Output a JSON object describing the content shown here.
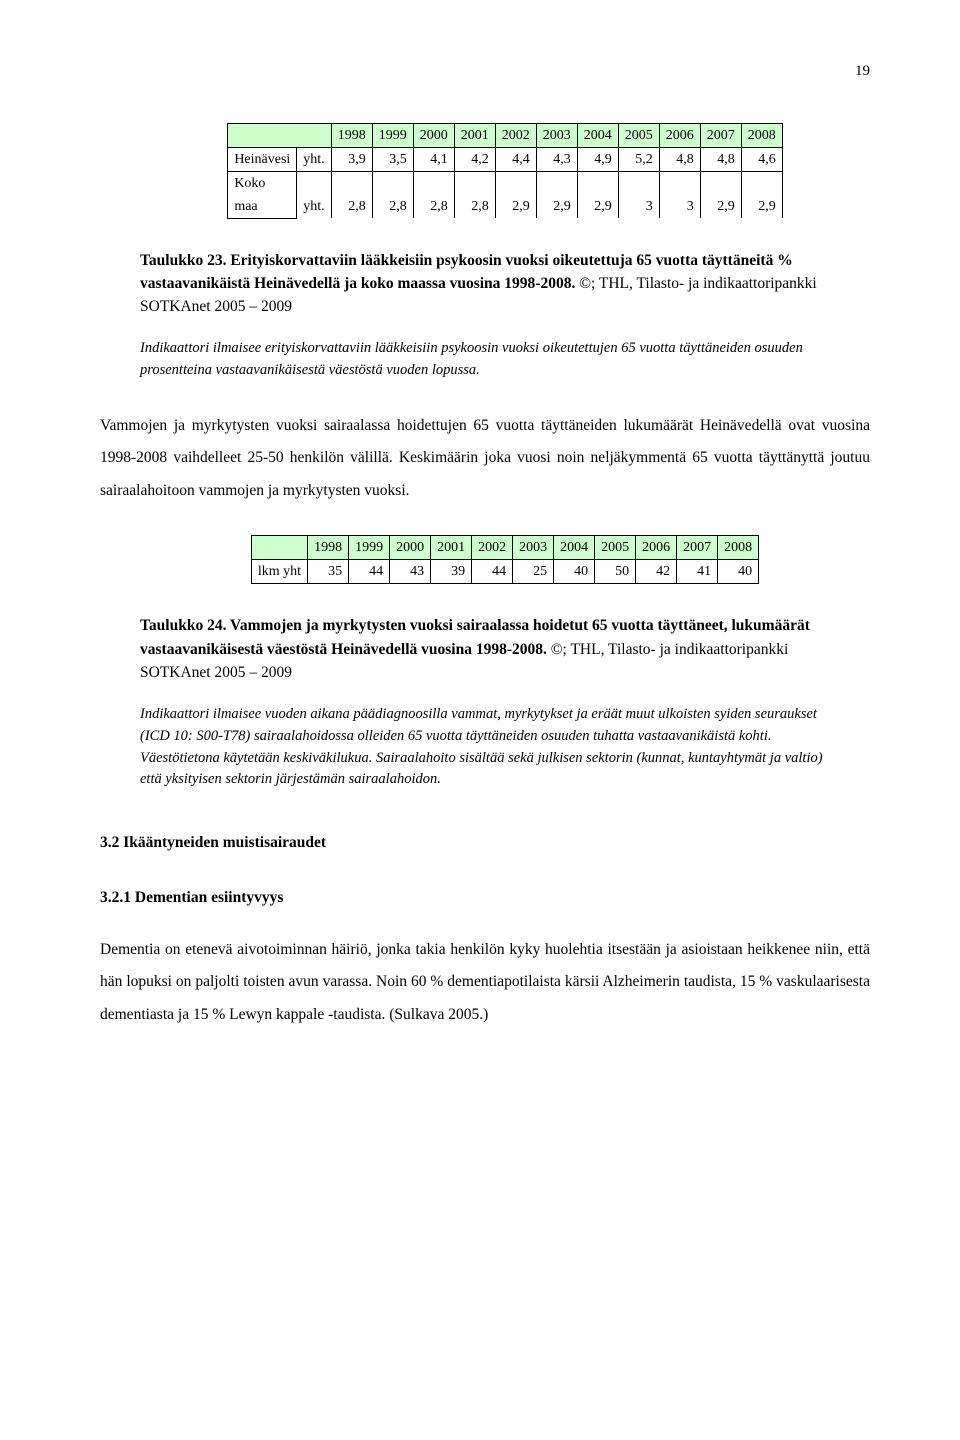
{
  "page_number": "19",
  "table1": {
    "years": [
      "1998",
      "1999",
      "2000",
      "2001",
      "2002",
      "2003",
      "2004",
      "2005",
      "2006",
      "2007",
      "2008"
    ],
    "rows": [
      {
        "label": "Heinävesi",
        "unit": "yht.",
        "values": [
          "3,9",
          "3,5",
          "4,1",
          "4,2",
          "4,4",
          "4,3",
          "4,9",
          "5,2",
          "4,8",
          "4,8",
          "4,6"
        ]
      },
      {
        "label": "Koko maa",
        "unit": "yht.",
        "values": [
          "2,8",
          "2,8",
          "2,8",
          "2,8",
          "2,9",
          "2,9",
          "2,9",
          "3",
          "3",
          "2,9",
          "2,9"
        ]
      }
    ],
    "header_bg": "#ccffcc"
  },
  "caption1": {
    "title": "Taulukko 23. Erityiskorvattaviin lääkkeisiin psykoosin vuoksi oikeutettuja 65 vuotta täyttäneitä % vastaavanikäistä Heinävedellä ja koko maassa vuosina 1998-2008.",
    "source": " ©; THL, Tilasto- ja indikaattoripankki SOTKAnet 2005 – 2009"
  },
  "note1": "Indikaattori ilmaisee erityiskorvattaviin lääkkeisiin psykoosin vuoksi oikeutettujen 65 vuotta täyttäneiden osuuden prosentteina vastaavanikäisestä väestöstä vuoden lopussa.",
  "para1": "Vammojen ja myrkytysten vuoksi sairaalassa hoidettujen 65 vuotta täyttäneiden lukumäärät Heinävedellä ovat vuosina 1998-2008 vaihdelleet 25-50 henkilön välillä. Keskimäärin joka vuosi noin neljäkymmentä 65 vuotta täyttänyttä joutuu sairaalahoitoon vammojen ja myrkytysten vuoksi.",
  "table2": {
    "years": [
      "1998",
      "1999",
      "2000",
      "2001",
      "2002",
      "2003",
      "2004",
      "2005",
      "2006",
      "2007",
      "2008"
    ],
    "row": {
      "label": "lkm yht",
      "values": [
        "35",
        "44",
        "43",
        "39",
        "44",
        "25",
        "40",
        "50",
        "42",
        "41",
        "40"
      ]
    },
    "header_bg": "#ccffcc"
  },
  "caption2": {
    "title": "Taulukko 24. Vammojen ja myrkytysten vuoksi sairaalassa hoidetut 65 vuotta täyttäneet, lukumäärät vastaavanikäisestä väestöstä Heinävedellä vuosina 1998-2008.",
    "source": " ©; THL, Tilasto- ja indikaattoripankki SOTKAnet 2005 – 2009"
  },
  "note2": "Indikaattori ilmaisee vuoden aikana päädiagnoosilla vammat, myrkytykset ja eräät muut ulkoisten syiden seuraukset (ICD 10: S00-T78) sairaalahoidossa olleiden 65 vuotta täyttäneiden osuuden tuhatta vastaavanikäistä kohti. Väestötietona käytetään keskiväkilukua. Sairaalahoito sisältää sekä julkisen sektorin (kunnat, kuntayhtymät ja valtio) että yksityisen sektorin järjestämän sairaalahoidon.",
  "heading1": "3.2 Ikääntyneiden muistisairaudet",
  "heading2": "3.2.1 Dementian esiintyvyys",
  "para2": "Dementia on etenevä aivotoiminnan häiriö, jonka takia henkilön kyky huolehtia itsestään ja asioistaan heikkenee niin, että hän lopuksi on paljolti toisten avun varassa. Noin 60 % dementiapotilaista kärsii Alzheimerin taudista, 15 % vaskulaarisesta dementiasta ja 15 % Lewyn kappale -taudista. (Sulkava 2005.)"
}
